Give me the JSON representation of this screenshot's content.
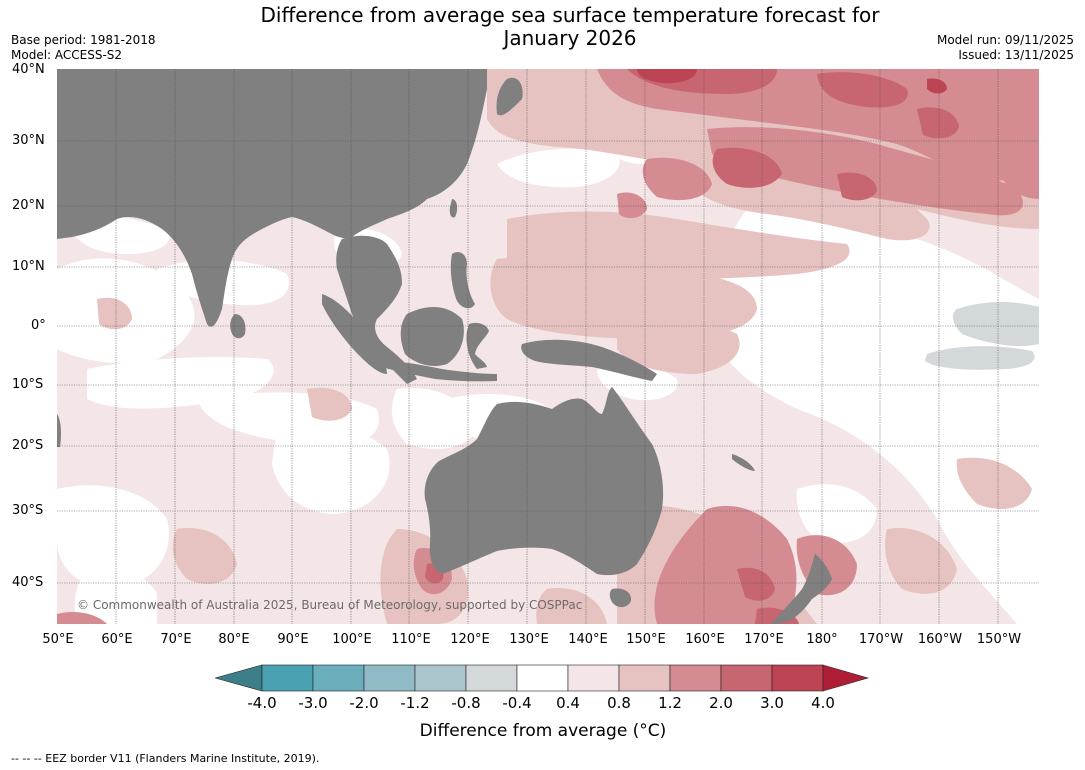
{
  "header": {
    "title_line1": "Difference from average sea surface temperature forecast for",
    "title_line2": "January 2026",
    "base_period": "Base period: 1981-2018",
    "model": "Model: ACCESS-S2",
    "model_run": "Model run: 09/11/2025",
    "issued": "Issued: 13/11/2025"
  },
  "map": {
    "lat_labels": [
      "40°N",
      "30°N",
      "20°N",
      "10°N",
      "0°",
      "10°S",
      "20°S",
      "30°S",
      "40°S"
    ],
    "lon_labels": [
      "50°E",
      "60°E",
      "70°E",
      "80°E",
      "90°E",
      "100°E",
      "110°E",
      "120°E",
      "130°E",
      "140°E",
      "150°E",
      "160°E",
      "170°E",
      "180°",
      "170°W",
      "160°W",
      "150°W"
    ],
    "copyright": "© Commonwealth of Australia 2025, Bureau of Meteorology, supported by COSPPac",
    "land_color": "#808080"
  },
  "colorbar": {
    "ticks": [
      "-4.0",
      "-3.0",
      "-2.0",
      "-1.2",
      "-0.8",
      "-0.4",
      "0.4",
      "0.8",
      "1.2",
      "2.0",
      "3.0",
      "4.0"
    ],
    "colors": [
      "#3d7f88",
      "#4aa1b2",
      "#6aaebb",
      "#8fbac6",
      "#aac5cb",
      "#d3d8da",
      "#ffffff",
      "#f4e6e6",
      "#e6c3c1",
      "#d58b92",
      "#c76570",
      "#bd4553",
      "#b01e35"
    ],
    "title": "Difference from average (°C)"
  },
  "footer": {
    "eez_note": "--  --  -- EEZ border V11 (Flanders Marine Institute, 2019)."
  }
}
